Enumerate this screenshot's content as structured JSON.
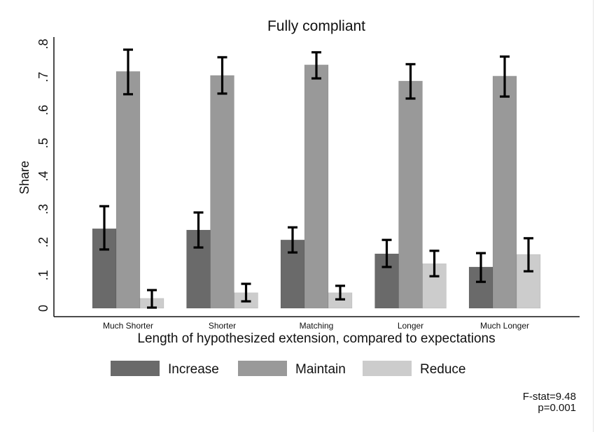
{
  "chart_data": {
    "type": "bar",
    "title": "Fully compliant",
    "xlabel": "Length of hypothesized extension, compared to expectations",
    "ylabel": "Share",
    "ylim": [
      0,
      0.8
    ],
    "yticks": [
      0,
      0.1,
      0.2,
      0.3,
      0.4,
      0.5,
      0.6,
      0.7,
      0.8
    ],
    "ytick_labels": [
      "0",
      ".1",
      ".2",
      ".3",
      ".4",
      ".5",
      ".6",
      ".7",
      ".8"
    ],
    "grid": false,
    "categories": [
      "Much Shorter",
      "Shorter",
      "Matching",
      "Longer",
      "Much Longer"
    ],
    "legend_position": "bottom",
    "series": [
      {
        "name": "Increase",
        "color": "#6a6a6a",
        "values": [
          0.241,
          0.237,
          0.207,
          0.165,
          0.125
        ],
        "ci_low": [
          0.178,
          0.184,
          0.169,
          0.125,
          0.08
        ],
        "ci_high": [
          0.309,
          0.29,
          0.245,
          0.207,
          0.167
        ]
      },
      {
        "name": "Maintain",
        "color": "#999999",
        "values": [
          0.717,
          0.705,
          0.737,
          0.688,
          0.703
        ],
        "ci_low": [
          0.648,
          0.65,
          0.696,
          0.635,
          0.641
        ],
        "ci_high": [
          0.783,
          0.76,
          0.775,
          0.739,
          0.762
        ]
      },
      {
        "name": "Reduce",
        "color": "#cccccc",
        "values": [
          0.03,
          0.047,
          0.047,
          0.135,
          0.163
        ],
        "ci_low": [
          0.002,
          0.021,
          0.027,
          0.097,
          0.112
        ],
        "ci_high": [
          0.055,
          0.074,
          0.068,
          0.174,
          0.212
        ]
      }
    ],
    "annotations": [
      "F-stat=9.48",
      "p=0.001"
    ]
  }
}
